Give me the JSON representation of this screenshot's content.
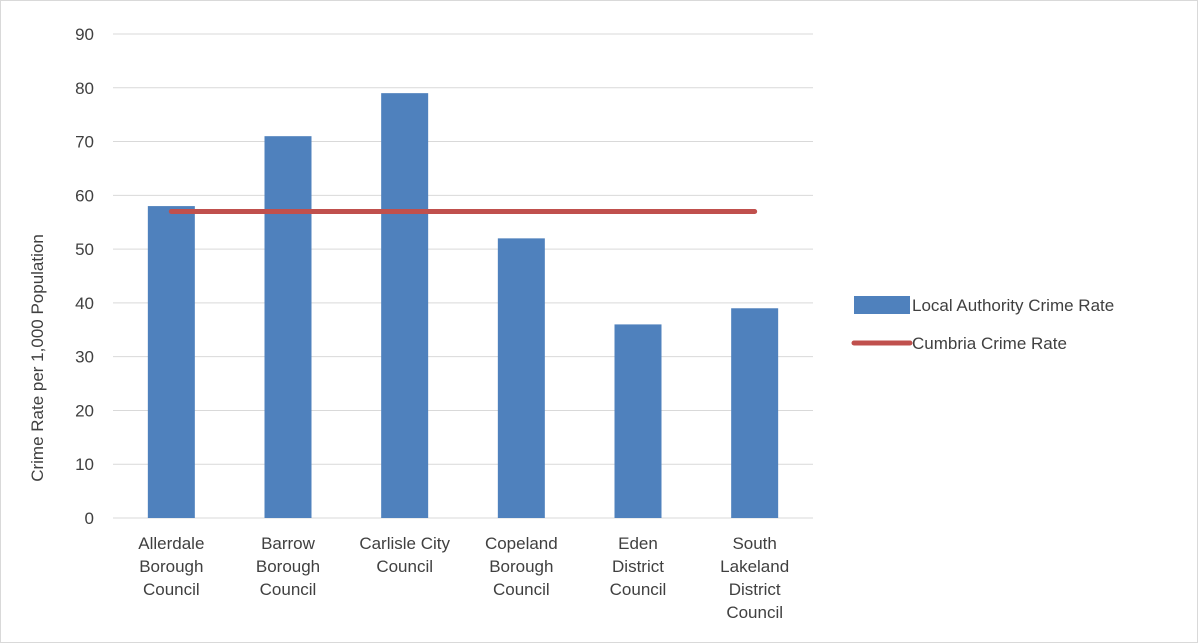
{
  "chart_data": {
    "type": "bar",
    "categories": [
      [
        "Allerdale",
        "Borough",
        "Council"
      ],
      [
        "Barrow",
        "Borough",
        "Council"
      ],
      [
        "Carlisle City",
        "Council"
      ],
      [
        "Copeland",
        "Borough",
        "Council"
      ],
      [
        "Eden",
        "District",
        "Council"
      ],
      [
        "South",
        "Lakeland",
        "District",
        "Council"
      ]
    ],
    "series": [
      {
        "name": "Local Authority Crime Rate",
        "type": "bar",
        "color": "#4f81bd",
        "values": [
          58,
          71,
          79,
          52,
          36,
          39
        ]
      },
      {
        "name": "Cumbria Crime Rate",
        "type": "line",
        "color": "#c0504d",
        "values": [
          57,
          57,
          57,
          57,
          57,
          57
        ]
      }
    ],
    "title": "",
    "xlabel": "",
    "ylabel": "Crime Rate per 1,000 Population",
    "ylim": [
      0,
      90
    ],
    "yticks": [
      0,
      10,
      20,
      30,
      40,
      50,
      60,
      70,
      80,
      90
    ],
    "grid": true,
    "legend_position": "right"
  }
}
